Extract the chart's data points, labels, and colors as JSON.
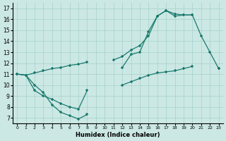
{
  "xlabel": "Humidex (Indice chaleur)",
  "background_color": "#cce8e4",
  "grid_color": "#aad4ce",
  "line_color": "#1a7a6e",
  "xlim": [
    -0.5,
    23.5
  ],
  "ylim": [
    6.5,
    17.5
  ],
  "yticks": [
    7,
    8,
    9,
    10,
    11,
    12,
    13,
    14,
    15,
    16,
    17
  ],
  "xticks": [
    0,
    1,
    2,
    3,
    4,
    5,
    6,
    7,
    8,
    9,
    10,
    11,
    12,
    13,
    14,
    15,
    16,
    17,
    18,
    19,
    20,
    21,
    22,
    23
  ],
  "line1_x": [
    0,
    1,
    2,
    3,
    4,
    5,
    6,
    7,
    8,
    9,
    10,
    11,
    12,
    13,
    14,
    15,
    16,
    17,
    18,
    19,
    20,
    21,
    22,
    23
  ],
  "line1_y": [
    11.0,
    10.9,
    10.0,
    9.3,
    8.2,
    7.5,
    7.2,
    6.9,
    7.3,
    null,
    null,
    null,
    11.6,
    12.8,
    13.0,
    14.9,
    16.3,
    16.8,
    16.3,
    16.4,
    16.4,
    14.5,
    13.0,
    11.5
  ],
  "line2_x": [
    0,
    1,
    2,
    3,
    4,
    5,
    6,
    7,
    8,
    9,
    10,
    11,
    12,
    13,
    14,
    15,
    16,
    17,
    18,
    19,
    20,
    21,
    22,
    23
  ],
  "line2_y": [
    11.0,
    10.9,
    11.1,
    11.3,
    11.5,
    11.6,
    11.8,
    11.9,
    12.1,
    null,
    null,
    12.3,
    12.6,
    13.2,
    13.6,
    14.5,
    16.3,
    16.8,
    16.5,
    16.4,
    16.4,
    null,
    null,
    11.5
  ],
  "line3_x": [
    0,
    1,
    2,
    3,
    4,
    5,
    6,
    7,
    8,
    9,
    10,
    11,
    12,
    13,
    14,
    15,
    16,
    17,
    18,
    19,
    20,
    21,
    22,
    23
  ],
  "line3_y": [
    11.0,
    10.9,
    9.5,
    9.0,
    8.7,
    8.3,
    8.0,
    7.8,
    9.5,
    null,
    null,
    null,
    10.0,
    10.3,
    10.6,
    10.9,
    11.1,
    11.2,
    11.3,
    11.5,
    11.7,
    null,
    null,
    11.5
  ]
}
